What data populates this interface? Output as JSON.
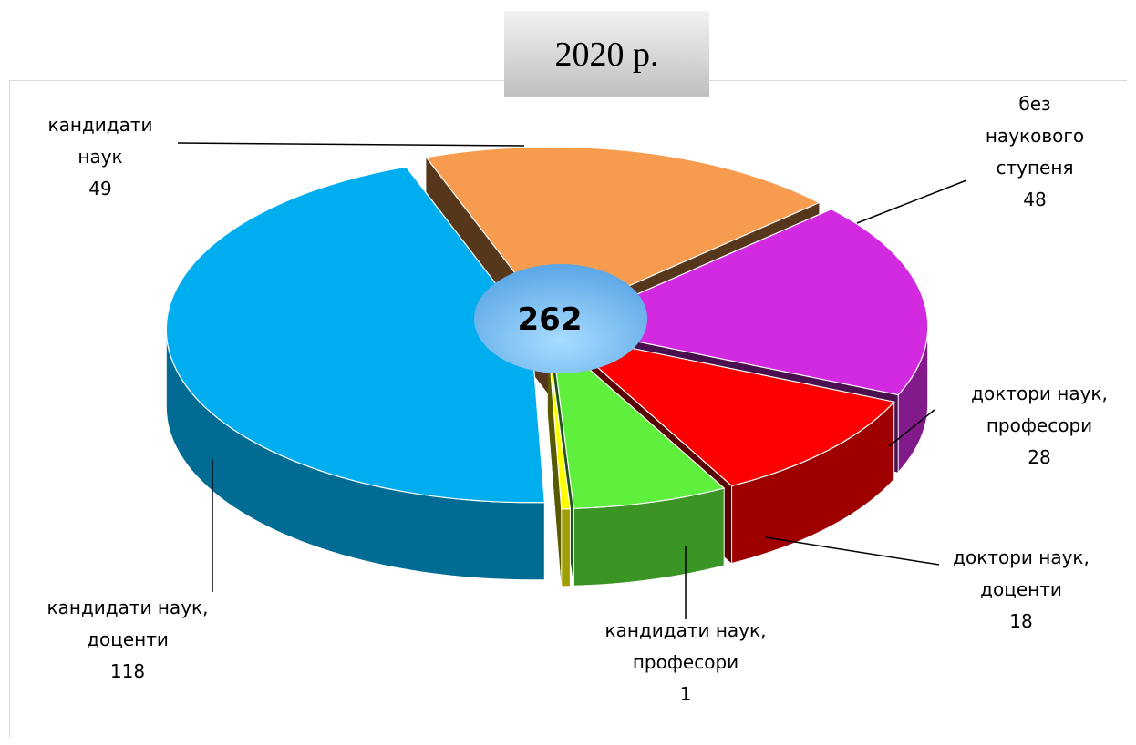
{
  "chart_data": {
    "type": "pie",
    "title": "2020 р.",
    "total": 262,
    "categories": [
      "кандидати наук",
      "без наукового ступеня",
      "доктори наук, професори",
      "доктори наук, доценти",
      "кандидати наук, професори",
      "кандидати наук, доценти"
    ],
    "values": [
      49,
      48,
      28,
      18,
      1,
      118
    ],
    "colors": [
      "#f79c4f",
      "#d22ae0",
      "#ff0000",
      "#5ef03c",
      "#ffff00",
      "#00aeef"
    ]
  }
}
